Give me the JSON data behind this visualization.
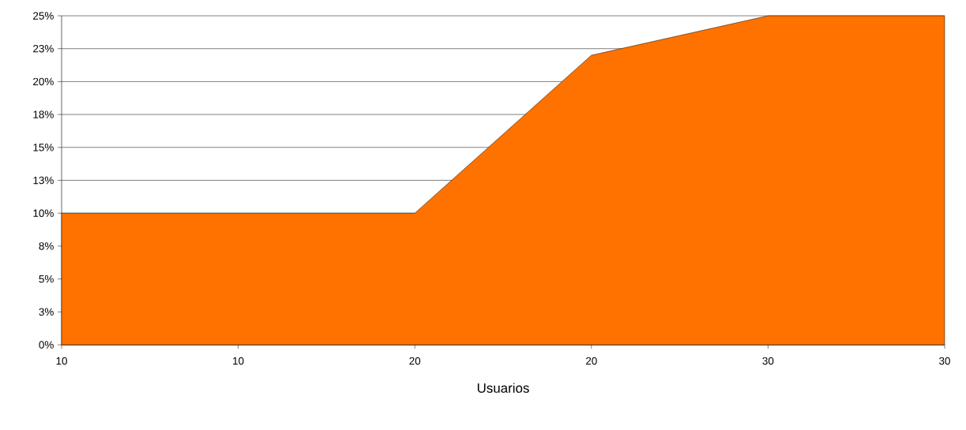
{
  "chart_data": {
    "type": "area",
    "xlabel": "Usuarios",
    "categories": [
      "10",
      "10",
      "20",
      "20",
      "30",
      "30"
    ],
    "values": [
      10,
      10,
      10,
      22,
      25,
      25
    ],
    "color": "#ff7200",
    "ylim": [
      0,
      25
    ],
    "yticks": [
      {
        "value": 0,
        "label": "0%"
      },
      {
        "value": 2.5,
        "label": "3%"
      },
      {
        "value": 5,
        "label": "5%"
      },
      {
        "value": 7.5,
        "label": "8%"
      },
      {
        "value": 10,
        "label": "10%"
      },
      {
        "value": 12.5,
        "label": "13%"
      },
      {
        "value": 15,
        "label": "15%"
      },
      {
        "value": 17.5,
        "label": "18%"
      },
      {
        "value": 20,
        "label": "20%"
      },
      {
        "value": 22.5,
        "label": "23%"
      },
      {
        "value": 25,
        "label": "25%"
      }
    ],
    "grid": "y"
  }
}
